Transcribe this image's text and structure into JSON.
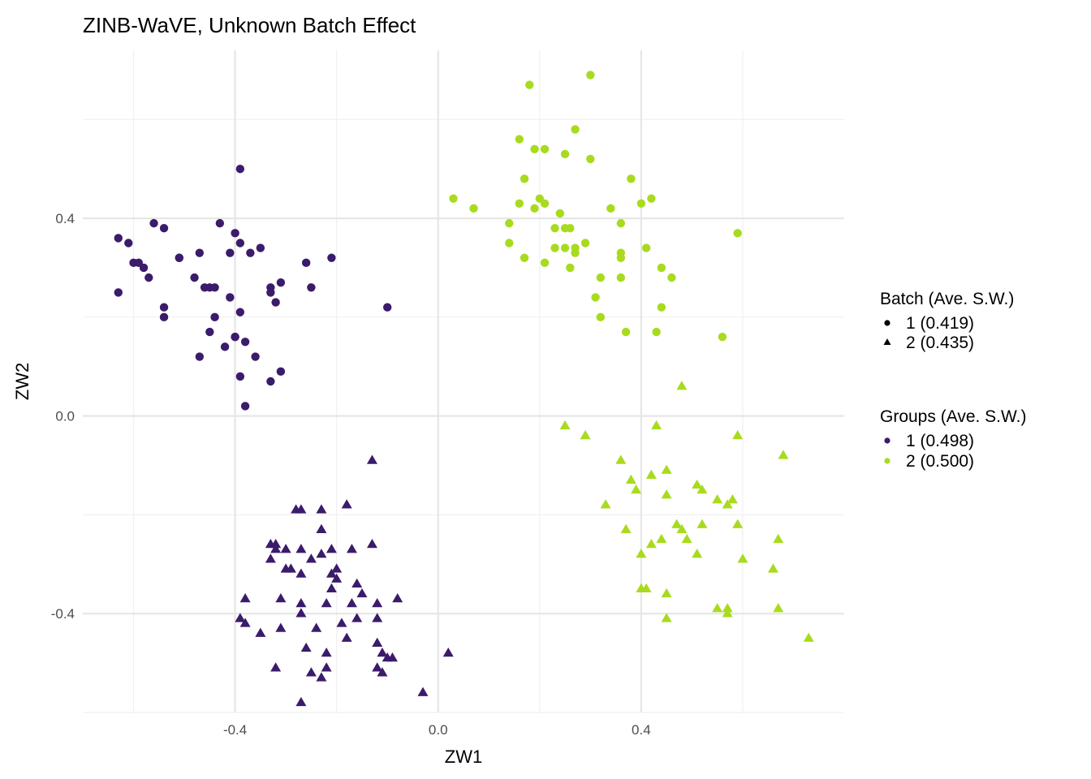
{
  "chart_data": {
    "type": "scatter",
    "title": "ZINB-WaVE, Unknown Batch Effect",
    "xlabel": "ZW1",
    "ylabel": "ZW2",
    "xlim": [
      -0.7,
      0.8
    ],
    "ylim": [
      -0.6,
      0.74
    ],
    "x_ticks": [
      -0.4,
      0.0,
      0.4
    ],
    "x_tick_labels": [
      "-0.4",
      "0.0",
      "0.4"
    ],
    "y_ticks": [
      -0.4,
      0.0,
      0.4
    ],
    "y_tick_labels": [
      "-0.4",
      "0.0",
      "0.4"
    ],
    "grid": true,
    "legend_position": "right",
    "colors": {
      "group1": "#3b1b6b",
      "group2": "#a8db1e",
      "grid_major": "#e6e6e6",
      "grid_minor": "#f0f0f0"
    },
    "legends": [
      {
        "title": "Batch (Ave. S.W.)",
        "entries": [
          {
            "label": "1 (0.419)",
            "shape": "circle"
          },
          {
            "label": "2 (0.435)",
            "shape": "triangle"
          }
        ]
      },
      {
        "title": "Groups (Ave. S.W.)",
        "entries": [
          {
            "label": "1 (0.498)",
            "color": "#3b1b6b"
          },
          {
            "label": "2 (0.500)",
            "color": "#a8db1e"
          }
        ]
      }
    ],
    "series": [
      {
        "batch": "1",
        "group": "1",
        "shape": "circle",
        "color": "#3b1b6b",
        "points": [
          [
            -0.63,
            0.36
          ],
          [
            -0.61,
            0.35
          ],
          [
            -0.6,
            0.31
          ],
          [
            -0.59,
            0.31
          ],
          [
            -0.58,
            0.3
          ],
          [
            -0.56,
            0.39
          ],
          [
            -0.54,
            0.38
          ],
          [
            -0.57,
            0.28
          ],
          [
            -0.51,
            0.32
          ],
          [
            -0.54,
            0.22
          ],
          [
            -0.54,
            0.2
          ],
          [
            -0.48,
            0.28
          ],
          [
            -0.47,
            0.33
          ],
          [
            -0.46,
            0.26
          ],
          [
            -0.45,
            0.26
          ],
          [
            -0.44,
            0.26
          ],
          [
            -0.43,
            0.39
          ],
          [
            -0.44,
            0.2
          ],
          [
            -0.45,
            0.17
          ],
          [
            -0.47,
            0.12
          ],
          [
            -0.42,
            0.14
          ],
          [
            -0.41,
            0.33
          ],
          [
            -0.4,
            0.37
          ],
          [
            -0.39,
            0.35
          ],
          [
            -0.41,
            0.24
          ],
          [
            -0.39,
            0.21
          ],
          [
            -0.4,
            0.16
          ],
          [
            -0.38,
            0.15
          ],
          [
            -0.37,
            0.33
          ],
          [
            -0.35,
            0.34
          ],
          [
            -0.39,
            0.5
          ],
          [
            -0.33,
            0.26
          ],
          [
            -0.33,
            0.25
          ],
          [
            -0.32,
            0.23
          ],
          [
            -0.31,
            0.27
          ],
          [
            -0.36,
            0.12
          ],
          [
            -0.31,
            0.09
          ],
          [
            -0.39,
            0.08
          ],
          [
            -0.33,
            0.07
          ],
          [
            -0.38,
            0.02
          ],
          [
            -0.26,
            0.31
          ],
          [
            -0.25,
            0.26
          ],
          [
            -0.21,
            0.32
          ],
          [
            -0.1,
            0.22
          ],
          [
            -0.63,
            0.25
          ],
          [
            -0.51,
            0.32
          ],
          [
            -0.4,
            0.16
          ]
        ]
      },
      {
        "batch": "1",
        "group": "2",
        "shape": "circle",
        "color": "#a8db1e",
        "points": [
          [
            0.18,
            0.67
          ],
          [
            0.3,
            0.69
          ],
          [
            0.16,
            0.56
          ],
          [
            0.27,
            0.58
          ],
          [
            0.19,
            0.54
          ],
          [
            0.21,
            0.54
          ],
          [
            0.25,
            0.53
          ],
          [
            0.3,
            0.52
          ],
          [
            0.17,
            0.48
          ],
          [
            0.38,
            0.48
          ],
          [
            0.03,
            0.44
          ],
          [
            0.07,
            0.42
          ],
          [
            0.16,
            0.43
          ],
          [
            0.2,
            0.44
          ],
          [
            0.21,
            0.43
          ],
          [
            0.19,
            0.42
          ],
          [
            0.24,
            0.41
          ],
          [
            0.14,
            0.39
          ],
          [
            0.23,
            0.38
          ],
          [
            0.25,
            0.38
          ],
          [
            0.26,
            0.38
          ],
          [
            0.14,
            0.35
          ],
          [
            0.23,
            0.34
          ],
          [
            0.25,
            0.34
          ],
          [
            0.27,
            0.34
          ],
          [
            0.29,
            0.35
          ],
          [
            0.27,
            0.33
          ],
          [
            0.17,
            0.32
          ],
          [
            0.21,
            0.31
          ],
          [
            0.26,
            0.3
          ],
          [
            0.34,
            0.42
          ],
          [
            0.36,
            0.39
          ],
          [
            0.36,
            0.33
          ],
          [
            0.36,
            0.32
          ],
          [
            0.4,
            0.43
          ],
          [
            0.42,
            0.44
          ],
          [
            0.41,
            0.34
          ],
          [
            0.32,
            0.28
          ],
          [
            0.36,
            0.28
          ],
          [
            0.44,
            0.3
          ],
          [
            0.46,
            0.28
          ],
          [
            0.31,
            0.24
          ],
          [
            0.44,
            0.22
          ],
          [
            0.32,
            0.2
          ],
          [
            0.37,
            0.17
          ],
          [
            0.43,
            0.17
          ],
          [
            0.59,
            0.37
          ],
          [
            0.56,
            0.16
          ]
        ]
      },
      {
        "batch": "2",
        "group": "1",
        "shape": "triangle",
        "color": "#3b1b6b",
        "points": [
          [
            -0.13,
            -0.09
          ],
          [
            -0.18,
            -0.18
          ],
          [
            -0.28,
            -0.19
          ],
          [
            -0.27,
            -0.19
          ],
          [
            -0.23,
            -0.19
          ],
          [
            -0.23,
            -0.23
          ],
          [
            -0.33,
            -0.26
          ],
          [
            -0.32,
            -0.26
          ],
          [
            -0.32,
            -0.27
          ],
          [
            -0.3,
            -0.27
          ],
          [
            -0.27,
            -0.27
          ],
          [
            -0.23,
            -0.28
          ],
          [
            -0.21,
            -0.27
          ],
          [
            -0.17,
            -0.27
          ],
          [
            -0.13,
            -0.26
          ],
          [
            -0.33,
            -0.29
          ],
          [
            -0.3,
            -0.31
          ],
          [
            -0.29,
            -0.31
          ],
          [
            -0.25,
            -0.29
          ],
          [
            -0.27,
            -0.32
          ],
          [
            -0.21,
            -0.32
          ],
          [
            -0.2,
            -0.33
          ],
          [
            -0.21,
            -0.35
          ],
          [
            -0.16,
            -0.34
          ],
          [
            -0.15,
            -0.36
          ],
          [
            -0.38,
            -0.37
          ],
          [
            -0.31,
            -0.37
          ],
          [
            -0.27,
            -0.38
          ],
          [
            -0.22,
            -0.38
          ],
          [
            -0.17,
            -0.38
          ],
          [
            -0.12,
            -0.38
          ],
          [
            -0.08,
            -0.37
          ],
          [
            -0.39,
            -0.41
          ],
          [
            -0.38,
            -0.42
          ],
          [
            -0.35,
            -0.44
          ],
          [
            -0.31,
            -0.43
          ],
          [
            -0.27,
            -0.4
          ],
          [
            -0.24,
            -0.43
          ],
          [
            -0.19,
            -0.42
          ],
          [
            -0.16,
            -0.41
          ],
          [
            -0.12,
            -0.41
          ],
          [
            -0.18,
            -0.45
          ],
          [
            -0.12,
            -0.46
          ],
          [
            -0.26,
            -0.47
          ],
          [
            -0.22,
            -0.48
          ],
          [
            -0.11,
            -0.48
          ],
          [
            -0.1,
            -0.49
          ],
          [
            -0.09,
            -0.49
          ],
          [
            -0.32,
            -0.51
          ],
          [
            -0.22,
            -0.51
          ],
          [
            -0.12,
            -0.51
          ],
          [
            -0.11,
            -0.52
          ],
          [
            -0.25,
            -0.52
          ],
          [
            -0.23,
            -0.53
          ],
          [
            -0.27,
            -0.58
          ],
          [
            -0.03,
            -0.56
          ],
          [
            0.02,
            -0.48
          ],
          [
            -0.2,
            -0.31
          ]
        ]
      },
      {
        "batch": "2",
        "group": "2",
        "shape": "triangle",
        "color": "#a8db1e",
        "points": [
          [
            0.48,
            0.06
          ],
          [
            0.25,
            -0.02
          ],
          [
            0.29,
            -0.04
          ],
          [
            0.43,
            -0.02
          ],
          [
            0.59,
            -0.04
          ],
          [
            0.68,
            -0.08
          ],
          [
            0.36,
            -0.09
          ],
          [
            0.38,
            -0.13
          ],
          [
            0.42,
            -0.12
          ],
          [
            0.45,
            -0.11
          ],
          [
            0.51,
            -0.14
          ],
          [
            0.52,
            -0.15
          ],
          [
            0.39,
            -0.15
          ],
          [
            0.45,
            -0.16
          ],
          [
            0.55,
            -0.17
          ],
          [
            0.58,
            -0.17
          ],
          [
            0.33,
            -0.18
          ],
          [
            0.57,
            -0.18
          ],
          [
            0.37,
            -0.23
          ],
          [
            0.47,
            -0.22
          ],
          [
            0.48,
            -0.23
          ],
          [
            0.52,
            -0.22
          ],
          [
            0.59,
            -0.22
          ],
          [
            0.42,
            -0.26
          ],
          [
            0.44,
            -0.25
          ],
          [
            0.49,
            -0.25
          ],
          [
            0.4,
            -0.28
          ],
          [
            0.51,
            -0.28
          ],
          [
            0.6,
            -0.29
          ],
          [
            0.67,
            -0.25
          ],
          [
            0.66,
            -0.31
          ],
          [
            0.4,
            -0.35
          ],
          [
            0.41,
            -0.35
          ],
          [
            0.45,
            -0.36
          ],
          [
            0.55,
            -0.39
          ],
          [
            0.57,
            -0.39
          ],
          [
            0.57,
            -0.4
          ],
          [
            0.67,
            -0.39
          ],
          [
            0.45,
            -0.41
          ],
          [
            0.73,
            -0.45
          ]
        ]
      }
    ]
  }
}
